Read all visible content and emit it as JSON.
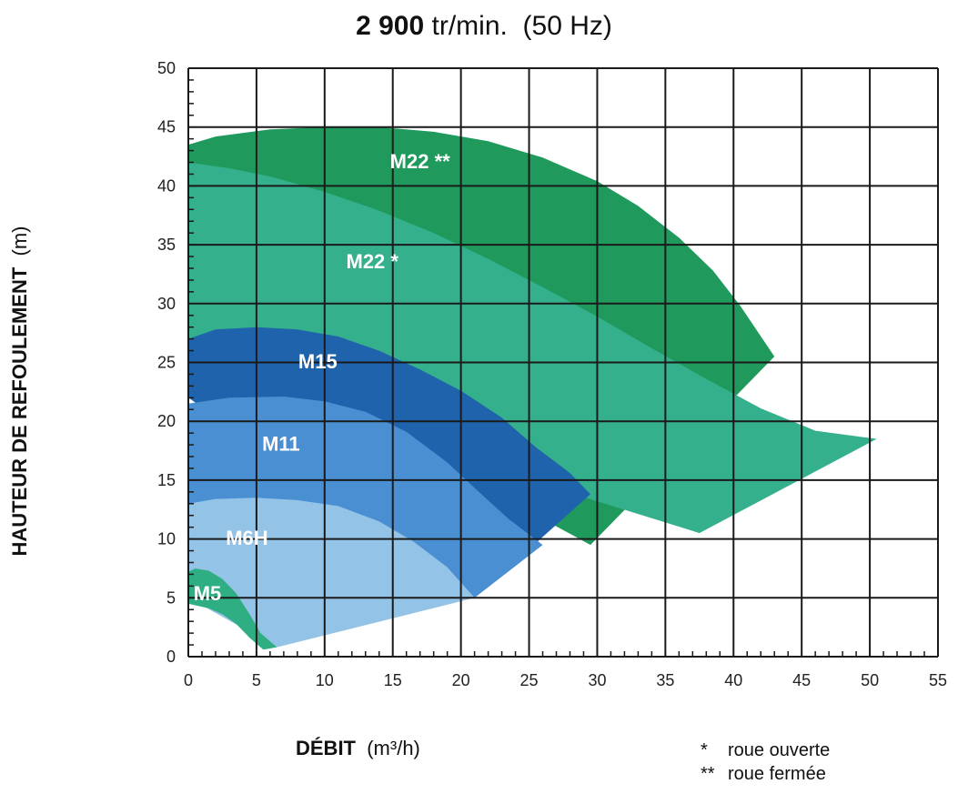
{
  "title": {
    "speed_bold": "2 900",
    "speed_unit": "tr/min.",
    "freq": "(50 Hz)"
  },
  "axes": {
    "y_label_bold": "HAUTEUR DE REFOULEMENT",
    "y_label_unit": "(m)",
    "x_label_bold": "DÉBIT",
    "x_label_unit": "(m³/h)"
  },
  "legend": [
    {
      "symbol": "*",
      "text": "roue ouverte"
    },
    {
      "symbol": "**",
      "text": "roue fermée"
    }
  ],
  "chart_data": {
    "type": "area",
    "xlim": [
      0,
      55
    ],
    "ylim": [
      0,
      50
    ],
    "x_ticks": [
      0,
      5,
      10,
      15,
      20,
      25,
      30,
      35,
      40,
      45,
      50,
      55
    ],
    "y_ticks": [
      0,
      5,
      10,
      15,
      20,
      25,
      30,
      35,
      40,
      45,
      50
    ],
    "grid": true,
    "regions": [
      {
        "name": "M22 **",
        "color": "#1f9a5c",
        "label_at": [
          17,
          41.5
        ],
        "polygon": [
          [
            0,
            43.5
          ],
          [
            2,
            44.2
          ],
          [
            6,
            44.8
          ],
          [
            10,
            45
          ],
          [
            14,
            45
          ],
          [
            18,
            44.6
          ],
          [
            22,
            43.8
          ],
          [
            26,
            42.4
          ],
          [
            30,
            40.4
          ],
          [
            33,
            38.3
          ],
          [
            36,
            35.6
          ],
          [
            38.5,
            32.8
          ],
          [
            40.5,
            29.8
          ],
          [
            43,
            25.5
          ],
          [
            29.5,
            9.5
          ],
          [
            0,
            28
          ]
        ]
      },
      {
        "name": "M22 *",
        "color": "#34b08c",
        "label_at": [
          13.5,
          33
        ],
        "polygon": [
          [
            0,
            42
          ],
          [
            3,
            41.5
          ],
          [
            6,
            40.8
          ],
          [
            10,
            39.5
          ],
          [
            14,
            37.9
          ],
          [
            18,
            36
          ],
          [
            22,
            33.8
          ],
          [
            26,
            31.4
          ],
          [
            30,
            28.9
          ],
          [
            34,
            26.2
          ],
          [
            38,
            23.6
          ],
          [
            42,
            21.1
          ],
          [
            46,
            19.2
          ],
          [
            50.5,
            18.5
          ],
          [
            37.5,
            10.5
          ],
          [
            0,
            24
          ]
        ]
      },
      {
        "name": "M15",
        "color": "#1f63ad",
        "label_at": [
          9.5,
          24.5
        ],
        "polygon": [
          [
            0,
            27
          ],
          [
            2,
            27.8
          ],
          [
            5,
            28
          ],
          [
            8,
            27.8
          ],
          [
            11,
            27.2
          ],
          [
            14,
            26
          ],
          [
            17,
            24.4
          ],
          [
            20,
            22.6
          ],
          [
            23,
            20.3
          ],
          [
            25.5,
            17.8
          ],
          [
            28,
            15.6
          ],
          [
            29.5,
            13.8
          ],
          [
            21,
            5
          ],
          [
            0,
            22
          ]
        ]
      },
      {
        "name": "M11",
        "color": "#4a8fd1",
        "label_at": [
          6.8,
          17.5
        ],
        "polygon": [
          [
            0,
            21.5
          ],
          [
            3,
            22
          ],
          [
            7,
            22.1
          ],
          [
            10,
            21.7
          ],
          [
            13,
            20.8
          ],
          [
            16,
            19.1
          ],
          [
            19,
            16.5
          ],
          [
            21.5,
            13.8
          ],
          [
            23.5,
            11.7
          ],
          [
            26,
            9.5
          ],
          [
            21,
            5
          ],
          [
            0,
            12.5
          ]
        ]
      },
      {
        "name": "M6H",
        "color": "#94c3e8",
        "label_at": [
          4.3,
          9.5
        ],
        "polygon": [
          [
            0,
            13
          ],
          [
            2,
            13.4
          ],
          [
            5,
            13.5
          ],
          [
            8,
            13.3
          ],
          [
            11,
            12.8
          ],
          [
            14,
            11.5
          ],
          [
            16.5,
            9.8
          ],
          [
            19,
            7.6
          ],
          [
            21,
            5
          ],
          [
            6.5,
            0.8
          ],
          [
            0,
            5
          ]
        ]
      },
      {
        "name": "M5",
        "color": "#2fae84",
        "label_at": [
          1.4,
          4.8
        ],
        "polygon": [
          [
            0,
            7.2
          ],
          [
            0.5,
            7.5
          ],
          [
            1.5,
            7.3
          ],
          [
            2.5,
            6.6
          ],
          [
            3.5,
            5.4
          ],
          [
            4.5,
            3.6
          ],
          [
            5.3,
            2
          ],
          [
            6.5,
            0.8
          ],
          [
            5.5,
            0.6
          ],
          [
            4.5,
            1.6
          ],
          [
            3.5,
            2.8
          ],
          [
            2.5,
            3.6
          ],
          [
            1.5,
            4.1
          ],
          [
            0,
            4.5
          ]
        ]
      }
    ]
  }
}
